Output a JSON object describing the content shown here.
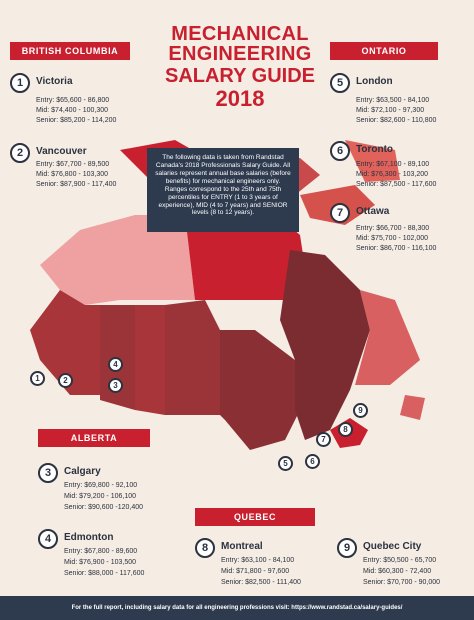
{
  "title": {
    "line1": "MECHANICAL",
    "line2": "ENGINEERING",
    "line3": "SALARY GUIDE",
    "line4": "2018"
  },
  "regions": {
    "bc": "BRITISH COLUMBIA",
    "ontario": "ONTARIO",
    "alberta": "ALBERTA",
    "quebec": "QUEBEC"
  },
  "note": "The following data is taken from Randstad Canada's 2018 Professionals Salary Guide. All salaries represent annual base salaries (before benefits) for mechanical engineers only. Ranges correspond to the 25th and 75th percentiles for ENTRY (1 to 3 years of experience), MID (4 to 7 years) and SENIOR levels (8 to 12 years).",
  "cities": [
    {
      "num": "1",
      "name": "Victoria",
      "entry": "Entry: $65,600 - 86,800",
      "mid": "Mid: $74,400 - 100,300",
      "senior": "Senior: $85,200 - 114,200"
    },
    {
      "num": "2",
      "name": "Vancouver",
      "entry": "Entry: $67,700 - 89,500",
      "mid": "Mid: $76,800 - 103,300",
      "senior": "Senior: $87,900 - 117,400"
    },
    {
      "num": "3",
      "name": "Calgary",
      "entry": "Entry: $69,800 - 92,100",
      "mid": "Mid: $79,200 - 106,100",
      "senior": "Senior: $90,600 -120,400"
    },
    {
      "num": "4",
      "name": "Edmonton",
      "entry": "Entry: $67,800 - 89,600",
      "mid": "Mid: $76,900 - 103,500",
      "senior": "Senior: $88,000 - 117,600"
    },
    {
      "num": "5",
      "name": "London",
      "entry": "Entry: $63,500 - 84,100",
      "mid": "Mid: $72,100 - 97,300",
      "senior": "Senior: $82,600 - 110,800"
    },
    {
      "num": "6",
      "name": "Toronto",
      "entry": "Entry: $67,100 - 89,100",
      "mid": "Mid: $76,300 - 103,200",
      "senior": "Senior: $87,500 - 117,600"
    },
    {
      "num": "7",
      "name": "Ottawa",
      "entry": "Entry: $66,700 - 88,300",
      "mid": "Mid: $75,700 - 102,000",
      "senior": "Senior: $86,700 - 116,100"
    },
    {
      "num": "8",
      "name": "Montreal",
      "entry": "Entry: $63,100 - 84,100",
      "mid": "Mid: $71,800 - 97,600",
      "senior": "Senior: $82,500 - 111,400"
    },
    {
      "num": "9",
      "name": "Quebec City",
      "entry": "Entry: $50,500 - 65,700",
      "mid": "Mid: $60,300 - 72,400",
      "senior": "Senior: $70,700 - 90,000"
    }
  ],
  "footer": "For the full report, including salary data for all engineering professions visit: https://www.randstad.ca/salary-guides/",
  "colors": {
    "accent": "#c8202f",
    "navy": "#2e3a4e",
    "background": "#f5ece3"
  }
}
